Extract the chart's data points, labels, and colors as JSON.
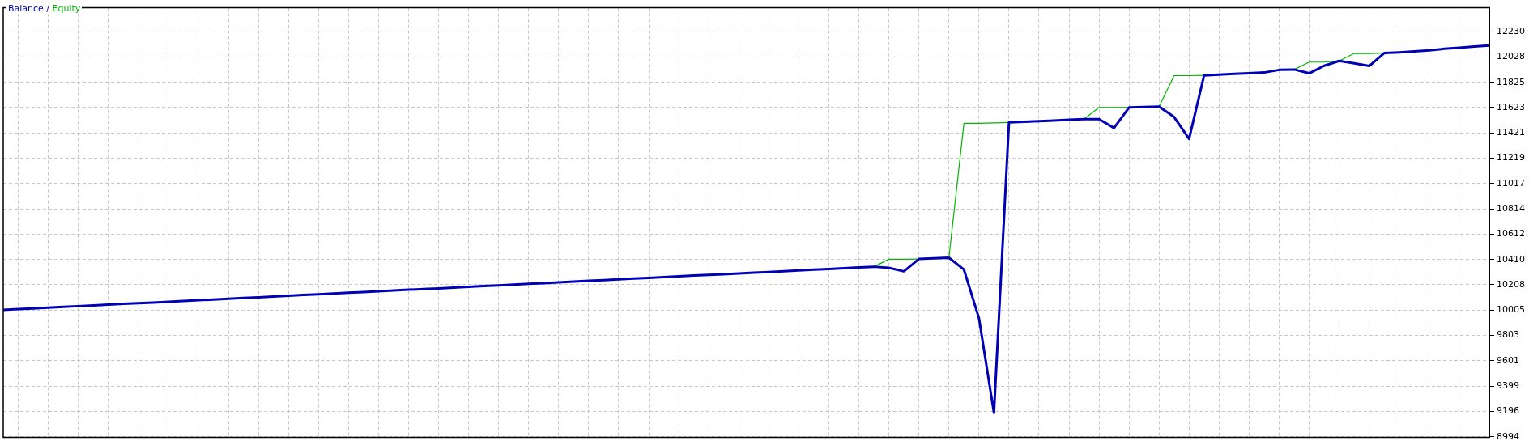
{
  "chart_data": {
    "type": "line",
    "categories": [
      null,
      null,
      null,
      null,
      null,
      null,
      null,
      null,
      null,
      null,
      null,
      null,
      null,
      null,
      null,
      null,
      null,
      null,
      null,
      null,
      null,
      null,
      null,
      null,
      null,
      null,
      null,
      null,
      null,
      null,
      null,
      null,
      null,
      null,
      null,
      null,
      null,
      null,
      null,
      null,
      null,
      null,
      null,
      null,
      null,
      null,
      null,
      null,
      null,
      null,
      null,
      null,
      null,
      null,
      null,
      null,
      null,
      null,
      null,
      null,
      null,
      null,
      null,
      null,
      null,
      null,
      null,
      null,
      null,
      null,
      null,
      null,
      null,
      null,
      null,
      null,
      null,
      null,
      null,
      null,
      null,
      null,
      null,
      null,
      null,
      null,
      null,
      null,
      null,
      null,
      null,
      null,
      null,
      null,
      null,
      null,
      null,
      null,
      null,
      null
    ],
    "series": [
      {
        "name": "Balance",
        "color": "#0000b4",
        "values": [
          10007,
          10013,
          10019,
          10025,
          10031,
          10037,
          10043,
          10049,
          10055,
          10060,
          10066,
          10072,
          10078,
          10084,
          10090,
          10096,
          10102,
          10108,
          10114,
          10120,
          10126,
          10132,
          10138,
          10144,
          10150,
          10156,
          10162,
          10168,
          10173,
          10179,
          10185,
          10191,
          10197,
          10203,
          10209,
          10215,
          10221,
          10227,
          10233,
          10239,
          10245,
          10251,
          10257,
          10263,
          10269,
          10275,
          10281,
          10287,
          10292,
          10298,
          10304,
          10310,
          10316,
          10322,
          10328,
          10334,
          10340,
          10346,
          10352,
          10343,
          10315,
          10414,
          10419,
          10424,
          10329,
          9942,
          9184,
          11504,
          11509,
          11515,
          11520,
          11525,
          11530,
          11531,
          11460,
          11624,
          11627,
          11630,
          11548,
          11373,
          11880,
          11886,
          11892,
          11898,
          11903,
          11924,
          11927,
          11897,
          11957,
          11996,
          11977,
          11955,
          12058,
          12064,
          12071,
          12080,
          12092,
          12100,
          12110,
          12119
        ]
      },
      {
        "name": "Equity",
        "color": "#00b400",
        "values": [
          null,
          null,
          null,
          null,
          null,
          null,
          null,
          null,
          null,
          null,
          null,
          null,
          null,
          null,
          null,
          null,
          null,
          null,
          null,
          null,
          null,
          null,
          null,
          null,
          null,
          null,
          null,
          null,
          null,
          null,
          null,
          null,
          null,
          null,
          null,
          null,
          null,
          null,
          null,
          null,
          null,
          null,
          null,
          null,
          null,
          null,
          null,
          null,
          null,
          null,
          null,
          null,
          null,
          null,
          null,
          null,
          null,
          null,
          10352,
          10412,
          10412,
          10414,
          null,
          10424,
          11497,
          11498,
          11500,
          11504,
          null,
          null,
          null,
          null,
          11530,
          11624,
          11624,
          11624,
          null,
          11630,
          11878,
          11878,
          11880,
          null,
          null,
          null,
          null,
          null,
          11927,
          11986,
          11986,
          11996,
          12055,
          12055,
          12058,
          null,
          null,
          null,
          null,
          null,
          null,
          null
        ]
      }
    ],
    "annotations": [
      "/"
    ],
    "ylim": [
      8990,
      12420
    ],
    "yticks": [
      8994,
      9196,
      9399,
      9601,
      9803,
      10005,
      10208,
      10410,
      10612,
      10814,
      11017,
      11219,
      11421,
      11623,
      11825,
      12028,
      12230
    ],
    "grid": true,
    "legend": "top left",
    "tick_labels": "y",
    "marker": "none",
    "line_style": "solid"
  }
}
